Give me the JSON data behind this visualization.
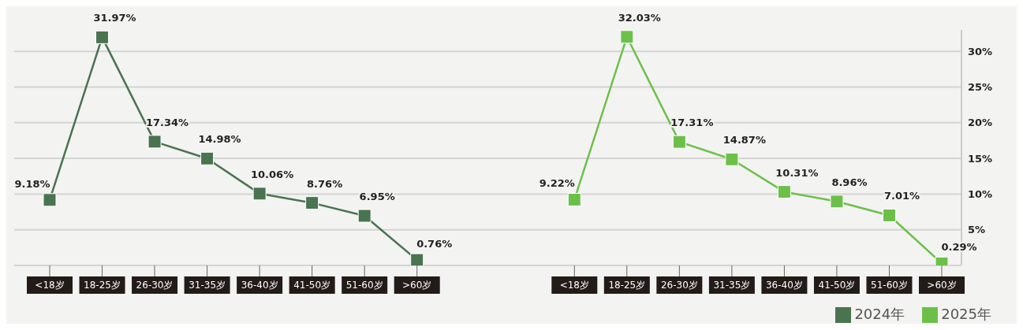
{
  "chart_data": {
    "type": "line",
    "categories": [
      "<18岁",
      "18-25岁",
      "26-30岁",
      "31-35岁",
      "36-40岁",
      "41-50岁",
      "51-60岁",
      ">60岁",
      null,
      null,
      "<18岁",
      "18-25岁",
      "26-30岁",
      "31-35岁",
      "36-40岁",
      "41-50岁",
      "51-60岁",
      ">60岁"
    ],
    "series": [
      {
        "name": "2024年",
        "color": "#4a7350",
        "values": [
          9.18,
          31.97,
          17.34,
          14.98,
          10.06,
          8.76,
          6.95,
          0.76,
          null,
          null,
          null,
          null,
          null,
          null,
          null,
          null,
          null,
          null
        ],
        "value_labels": [
          "9.18%",
          "31.97%",
          "17.34%",
          "14.98%",
          "10.06%",
          "8.76%",
          "6.95%",
          "0.76%",
          null,
          null,
          null,
          null,
          null,
          null,
          null,
          null,
          null,
          null
        ]
      },
      {
        "name": "2025年",
        "color": "#6cc04a",
        "values": [
          null,
          null,
          null,
          null,
          null,
          null,
          null,
          null,
          null,
          null,
          9.22,
          32.03,
          17.31,
          14.87,
          10.31,
          8.96,
          7.01,
          0.29
        ],
        "value_labels": [
          null,
          null,
          null,
          null,
          null,
          null,
          null,
          null,
          null,
          null,
          "9.22%",
          "32.03%",
          "17.31%",
          "14.87%",
          "10.31%",
          "8.96%",
          "7.01%",
          "0.29%"
        ]
      }
    ],
    "ylim": [
      0,
      33
    ],
    "yticks": [
      {
        "value": 0,
        "label": null
      },
      {
        "value": 5,
        "label": "5%"
      },
      {
        "value": 10,
        "label": "10%"
      },
      {
        "value": 15,
        "label": "15%"
      },
      {
        "value": 20,
        "label": "20%"
      },
      {
        "value": 25,
        "label": "25%"
      },
      {
        "value": 30,
        "label": "30%"
      }
    ],
    "grid": "y",
    "legend": "bottom right",
    "marker": "square",
    "line_style": "solid"
  }
}
